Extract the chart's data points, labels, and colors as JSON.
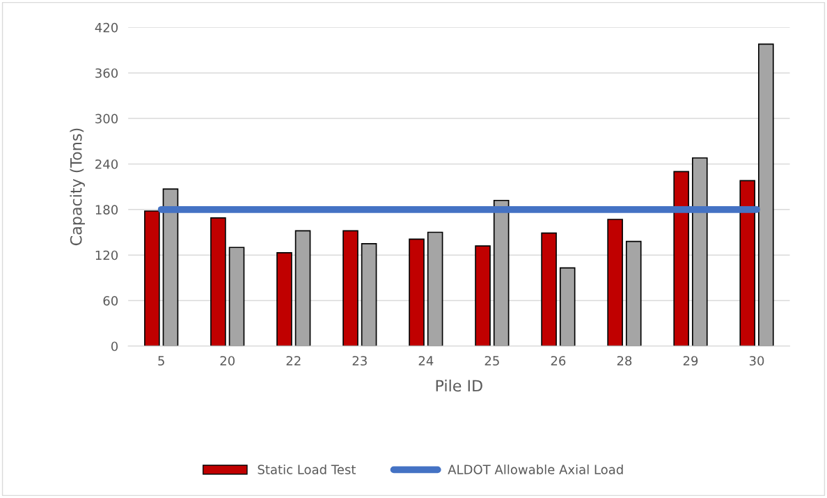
{
  "chart_data": {
    "type": "bar",
    "xlabel": "Pile ID",
    "ylabel": "Capacity (Tons)",
    "categories": [
      "5",
      "20",
      "22",
      "23",
      "24",
      "25",
      "26",
      "28",
      "29",
      "30"
    ],
    "series": [
      {
        "name": "Static Load Test",
        "color": "#c00000",
        "values": [
          178,
          169,
          123,
          152,
          141,
          132,
          149,
          167,
          230,
          218
        ]
      },
      {
        "color": "#a5a5a5",
        "values": [
          207,
          130,
          152,
          135,
          150,
          192,
          103,
          138,
          248,
          398
        ]
      },
      {
        "name": "ALDOT Allowable Axial Load",
        "type": "line",
        "color": "#4472c4",
        "values": [
          180,
          180,
          180,
          180,
          180,
          180,
          180,
          180,
          180,
          180
        ]
      }
    ],
    "ylim": [
      0,
      420
    ],
    "yticks": [
      0,
      60,
      120,
      180,
      240,
      300,
      360,
      420
    ],
    "grid": "y",
    "legend": "bottom"
  }
}
